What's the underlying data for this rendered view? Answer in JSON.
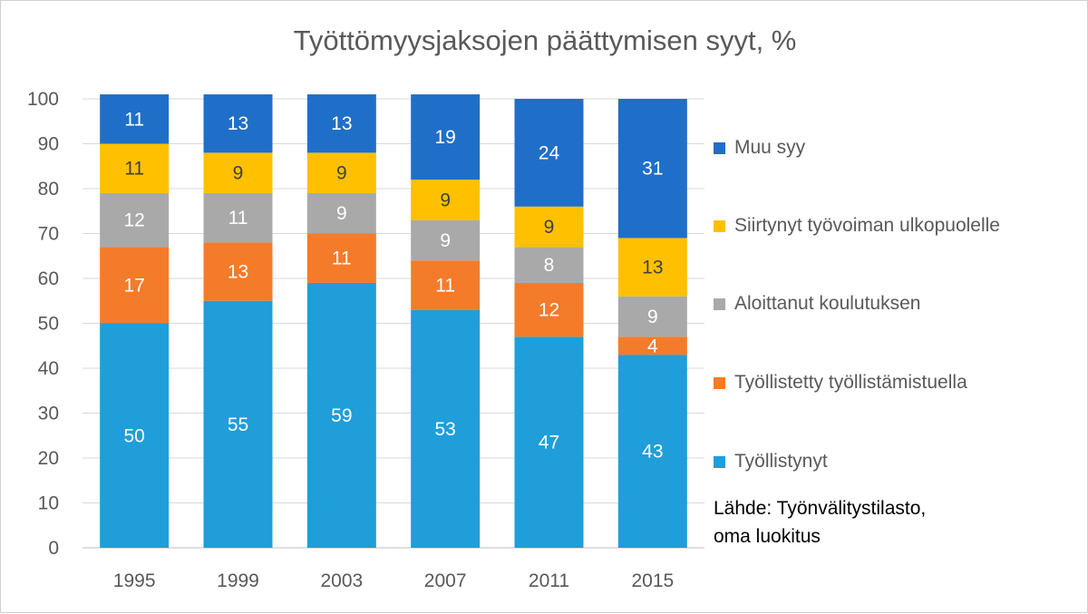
{
  "chart_data": {
    "type": "bar",
    "stacked": true,
    "title": "Työttömyysjaksojen päättymisen syyt, %",
    "xlabel": "",
    "ylabel": "",
    "categories": [
      "1995",
      "1999",
      "2003",
      "2007",
      "2011",
      "2015"
    ],
    "ylim": [
      0,
      100
    ],
    "yticks": [
      0,
      10,
      20,
      30,
      40,
      50,
      60,
      70,
      80,
      90,
      100
    ],
    "grid": true,
    "legend_position": "right",
    "series": [
      {
        "name": "Työllistynyt",
        "color": "#1F9ED9",
        "label_color": "#ffffff",
        "values": [
          50,
          55,
          59,
          53,
          47,
          43
        ]
      },
      {
        "name": "Työllistetty työllistämistuella",
        "color": "#F47B2A",
        "label_color": "#ffffff",
        "values": [
          17,
          13,
          11,
          11,
          12,
          4
        ]
      },
      {
        "name": "Aloittanut koulutuksen",
        "color": "#A9A9A9",
        "label_color": "#ffffff",
        "values": [
          12,
          11,
          9,
          9,
          8,
          9
        ]
      },
      {
        "name": "Siirtynyt työvoiman ulkopuolelle",
        "color": "#FFC000",
        "label_color": "#404040",
        "values": [
          11,
          9,
          9,
          9,
          9,
          13
        ]
      },
      {
        "name": "Muu syy",
        "color": "#1F6FC8",
        "label_color": "#ffffff",
        "values": [
          11,
          13,
          13,
          19,
          24,
          31
        ]
      }
    ],
    "source_note": {
      "line1": "Lähde: Työnvälitystilasto,",
      "line2": "oma luokitus"
    }
  }
}
